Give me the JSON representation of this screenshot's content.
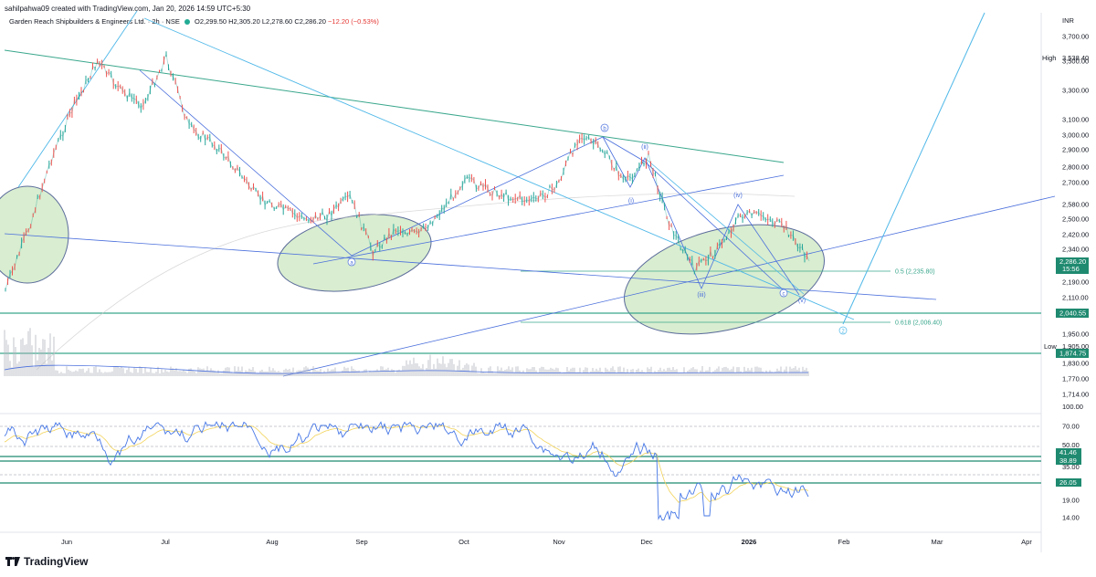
{
  "header": {
    "credit": "sahilpahwa09 created with TradingView.com, Jan 20, 2026 14:59 UTC+5:30"
  },
  "legend": {
    "name": "Garden Reach Shipbuilders & Engineers Ltd.",
    "interval": "2h",
    "exchange": "NSE",
    "open": "O2,299.50",
    "high": "H2,305.20",
    "low": "L2,278.60",
    "close": "C2,286.20",
    "change": "−12.20 (−0.53%)"
  },
  "price_axis": {
    "currency": "INR",
    "ticks": [
      "3,700.00",
      "3,500.00",
      "3,300.00",
      "3,100.00",
      "3,000.00",
      "2,900.00",
      "2,800.00",
      "2,700.00",
      "2,580.00",
      "2,500.00",
      "2,420.00",
      "2,340.00",
      "2,190.00",
      "2,110.00",
      "1,950.00",
      "1,830.00",
      "1,770.00",
      "1,714.00"
    ],
    "high_label": "High",
    "high_value": "3,538.40",
    "low_label": "Low",
    "low_value": "1,905.00",
    "current_price": "2,286.20",
    "countdown": "15:56",
    "level_2040": "2,040.55",
    "level_1874": "1,874.75",
    "volume_tick": "100.00"
  },
  "rsi_axis": {
    "ticks": [
      "70.00",
      "50.00",
      "35.00",
      "19.00",
      "14.00"
    ],
    "tag1": "41.46",
    "tag2": "38.89",
    "tag3": "26.05"
  },
  "time_axis": {
    "labels": [
      "Jun",
      "Jul",
      "Aug",
      "Sep",
      "Oct",
      "Nov",
      "Dec",
      "2026",
      "Feb",
      "Mar",
      "Apr"
    ]
  },
  "annotations": {
    "fib_05": "0.5 (2,235.80)",
    "fib_0618": "0.618 (2,006.40)",
    "wave_a": "a",
    "wave_b": "b",
    "wave_c": "c",
    "wave_2": "2",
    "wave_i": "(i)",
    "wave_ii": "(ii)",
    "wave_iii": "(iii)",
    "wave_iv": "(iv)",
    "wave_v": "(v)"
  },
  "brand": "TradingView",
  "colors": {
    "up": "#26a69a",
    "down": "#ef5350",
    "trend_blue": "#4a6fdc",
    "light_blue": "#4fb8e8",
    "teal_line": "#3aa78c",
    "rsi_line": "#4677e6",
    "rsi_ma": "#f2d35a",
    "ellipse_fill": "#cfe8c4",
    "tag_teal": "#1f8a70"
  },
  "chart_data": {
    "type": "candlestick",
    "symbol": "Garden Reach Shipbuilders & Engineers Ltd.",
    "interval": "2h",
    "ohlc_last": {
      "open": 2299.5,
      "high": 2305.2,
      "low": 2278.6,
      "close": 2286.2
    },
    "x_labels": [
      "Jun",
      "Jul",
      "Aug",
      "Sep",
      "Oct",
      "Nov",
      "Dec",
      "2026",
      "Feb",
      "Mar",
      "Apr"
    ],
    "price_path": [
      {
        "t": "May",
        "p": 2150
      },
      {
        "t": "May",
        "p": 2450
      },
      {
        "t": "May",
        "p": 2850
      },
      {
        "t": "Jun",
        "p": 3200
      },
      {
        "t": "Jun",
        "p": 3500
      },
      {
        "t": "Jun",
        "p": 3300
      },
      {
        "t": "Jun",
        "p": 3200
      },
      {
        "t": "Jul",
        "p": 3538
      },
      {
        "t": "Jul",
        "p": 3050
      },
      {
        "t": "Jul",
        "p": 2950
      },
      {
        "t": "Jul",
        "p": 2800
      },
      {
        "t": "Aug",
        "p": 2620
      },
      {
        "t": "Aug",
        "p": 2560
      },
      {
        "t": "Aug",
        "p": 2500
      },
      {
        "t": "Aug",
        "p": 2520
      },
      {
        "t": "Aug",
        "p": 2620
      },
      {
        "t": "Sep",
        "p": 2330
      },
      {
        "t": "Sep",
        "p": 2450
      },
      {
        "t": "Sep",
        "p": 2420
      },
      {
        "t": "Sep",
        "p": 2550
      },
      {
        "t": "Oct",
        "p": 2720
      },
      {
        "t": "Oct",
        "p": 2660
      },
      {
        "t": "Oct",
        "p": 2620
      },
      {
        "t": "Oct",
        "p": 2600
      },
      {
        "t": "Nov",
        "p": 2680
      },
      {
        "t": "Nov",
        "p": 3000
      },
      {
        "t": "Nov",
        "p": 2900
      },
      {
        "t": "Nov",
        "p": 2700
      },
      {
        "t": "Dec",
        "p": 2860
      },
      {
        "t": "Dec",
        "p": 2450
      },
      {
        "t": "Dec",
        "p": 2250
      },
      {
        "t": "Dec",
        "p": 2340
      },
      {
        "t": "Dec",
        "p": 2520
      },
      {
        "t": "2026",
        "p": 2520
      },
      {
        "t": "Jan",
        "p": 2450
      },
      {
        "t": "Jan",
        "p": 2286
      }
    ],
    "levels": [
      {
        "name": "0.5",
        "value": 2235.8
      },
      {
        "name": "0.618",
        "value": 2006.4
      },
      {
        "value": 2040.55
      },
      {
        "value": 1874.75
      }
    ],
    "high": 3538.4,
    "low": 1905.0,
    "rsi_levels": [
      70,
      50,
      35,
      19,
      14
    ],
    "rsi_tags": [
      41.46,
      38.89,
      26.05
    ]
  }
}
